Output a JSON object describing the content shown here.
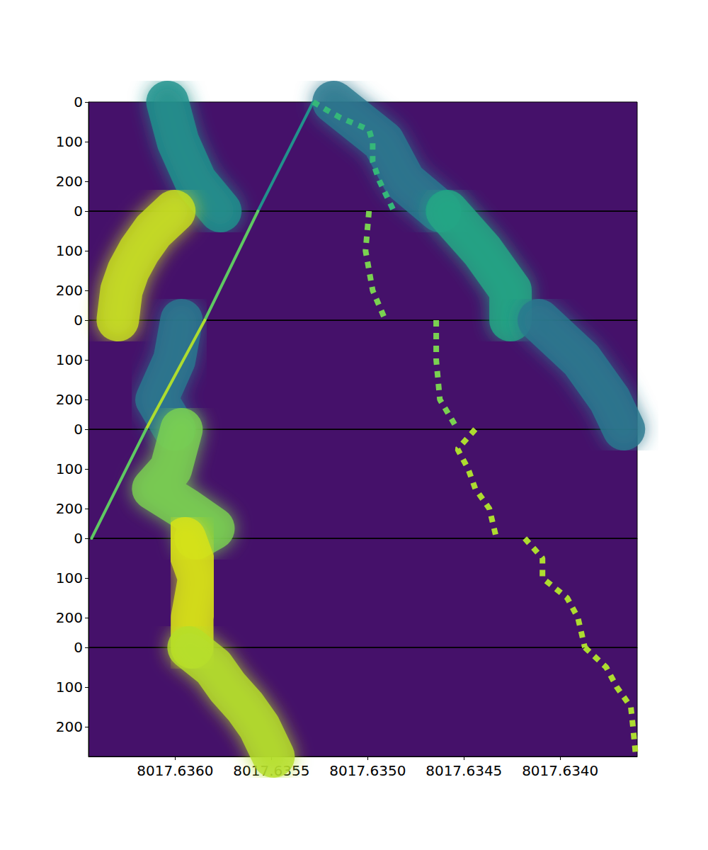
{
  "chart_data": [
    {
      "type": "line",
      "tick_labels": "y",
      "xlim": [
        8017.63645,
        8017.6336
      ],
      "ylim": [
        275,
        0
      ],
      "yticks": [
        0,
        100,
        200
      ],
      "series": [
        {
          "line_style": "broad",
          "color": "#21918c",
          "y": [
            0,
            100,
            200,
            275
          ],
          "x": [
            8017.63604,
            8017.635985,
            8017.635893,
            8017.635765
          ]
        },
        {
          "line_style": "broad",
          "color": "#2a788e",
          "y": [
            0,
            100,
            200,
            275
          ],
          "x": [
            8017.635177,
            8017.634919,
            8017.634809,
            8017.634625
          ]
        },
        {
          "line_style": "thin",
          "color": "#21918c",
          "y": [
            0,
            275
          ],
          "x": [
            8017.635283,
            8017.63557
          ]
        },
        {
          "line_style": "dotted",
          "color": "#35b779",
          "y": [
            0,
            20,
            40,
            70,
            100,
            150,
            200,
            275
          ],
          "x": [
            8017.635283,
            8017.635213,
            8017.63514,
            8017.634993,
            8017.634974,
            8017.634974,
            8017.634938,
            8017.634864
          ]
        }
      ]
    },
    {
      "type": "line",
      "tick_labels": "y",
      "xlim": [
        8017.63645,
        8017.6336
      ],
      "ylim": [
        275,
        0
      ],
      "yticks": [
        0,
        100,
        200
      ],
      "series": [
        {
          "line_style": "broad",
          "color": "#c8e020",
          "y": [
            0,
            50,
            100,
            150,
            200,
            275
          ],
          "x": [
            8017.636004,
            8017.636114,
            8017.636187,
            8017.636243,
            8017.636279,
            8017.636298
          ]
        },
        {
          "line_style": "broad",
          "color": "#22a884",
          "y": [
            0,
            100,
            200,
            275
          ],
          "x": [
            8017.634588,
            8017.634405,
            8017.634258,
            8017.634258
          ]
        },
        {
          "line_style": "thin",
          "color": "#5ec962",
          "y": [
            0,
            275
          ],
          "x": [
            8017.63557,
            8017.635846
          ]
        },
        {
          "line_style": "dotted",
          "color": "#7ad151",
          "y": [
            0,
            100,
            200,
            275
          ],
          "x": [
            8017.634993,
            8017.635011,
            8017.634974,
            8017.634908
          ]
        }
      ]
    },
    {
      "type": "line",
      "tick_labels": "y",
      "xlim": [
        8017.63645,
        8017.6336
      ],
      "ylim": [
        275,
        0
      ],
      "yticks": [
        0,
        100,
        200
      ],
      "series": [
        {
          "line_style": "broad",
          "color": "#2a788e",
          "y": [
            0,
            100,
            200,
            275
          ],
          "x": [
            8017.635967,
            8017.636004,
            8017.636096,
            8017.636004
          ]
        },
        {
          "line_style": "broad",
          "color": "#2a788e",
          "y": [
            0,
            100,
            200,
            275
          ],
          "x": [
            8017.634111,
            8017.63389,
            8017.633743,
            8017.633669
          ]
        },
        {
          "line_style": "thin",
          "color": "#addc30",
          "y": [
            0,
            275
          ],
          "x": [
            8017.635846,
            8017.636151
          ]
        },
        {
          "line_style": "dotted",
          "color": "#7ad151",
          "y": [
            0,
            100,
            200,
            275
          ],
          "x": [
            8017.634644,
            8017.634644,
            8017.634625,
            8017.634533
          ]
        }
      ]
    },
    {
      "type": "line",
      "tick_labels": "y",
      "xlim": [
        8017.63645,
        8017.6336
      ],
      "ylim": [
        275,
        0
      ],
      "yticks": [
        0,
        100,
        200
      ],
      "series": [
        {
          "line_style": "broad",
          "color": "#7ad151",
          "y": [
            0,
            100,
            150,
            200,
            250,
            275
          ],
          "x": [
            8017.635967,
            8017.636022,
            8017.636114,
            8017.635949,
            8017.635801,
            8017.635893
          ]
        },
        {
          "line_style": "thin",
          "color": "#5ec962",
          "y": [
            0,
            275
          ],
          "x": [
            8017.636151,
            8017.636434
          ]
        },
        {
          "line_style": "dotted",
          "color": "#addc30",
          "y": [
            0,
            50,
            100,
            150,
            200,
            275
          ],
          "x": [
            8017.634441,
            8017.634533,
            8017.634478,
            8017.634441,
            8017.634368,
            8017.634331
          ]
        }
      ]
    },
    {
      "type": "line",
      "tick_labels": "y",
      "xlim": [
        8017.63645,
        8017.6336
      ],
      "ylim": [
        275,
        0
      ],
      "yticks": [
        0,
        100,
        200
      ],
      "series": [
        {
          "line_style": "broad",
          "color": "#d8e219",
          "y": [
            0,
            100,
            200,
            275
          ],
          "x": [
            8017.635949,
            8017.635875,
            8017.635912,
            8017.635912
          ]
        },
        {
          "line_style": "dotted",
          "color": "#addc30",
          "y": [
            0,
            50,
            100,
            150,
            200,
            275
          ],
          "x": [
            8017.634184,
            8017.634092,
            8017.634092,
            8017.633964,
            8017.633908,
            8017.633872
          ]
        }
      ]
    },
    {
      "type": "line",
      "xlim": [
        8017.63645,
        8017.6336
      ],
      "ylim": [
        275,
        0
      ],
      "yticks": [
        0,
        100,
        200
      ],
      "xticks": [
        {
          "value": 8017.636,
          "label": "8017.6360"
        },
        {
          "value": 8017.6355,
          "label": "8017.6355"
        },
        {
          "value": 8017.635,
          "label": "8017.6350"
        },
        {
          "value": 8017.6345,
          "label": "8017.6345"
        },
        {
          "value": 8017.634,
          "label": "8017.6340"
        }
      ],
      "series": [
        {
          "line_style": "broad",
          "color": "#b5de2b",
          "y": [
            0,
            50,
            100,
            150,
            200,
            275
          ],
          "x": [
            8017.63593,
            8017.635801,
            8017.635728,
            8017.635636,
            8017.635563,
            8017.635489
          ]
        },
        {
          "line_style": "dotted",
          "color": "#addc30",
          "y": [
            0,
            50,
            100,
            150,
            200,
            275
          ],
          "x": [
            8017.633872,
            8017.633761,
            8017.633706,
            8017.633633,
            8017.633622,
            8017.633607
          ]
        }
      ]
    }
  ]
}
